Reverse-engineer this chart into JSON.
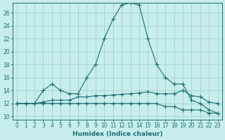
{
  "xlabel": "Humidex (Indice chaleur)",
  "bg_color": "#c8eded",
  "grid_color": "#a8d4d4",
  "line_color": "#1a7070",
  "xlim": [
    -0.5,
    23.5
  ],
  "ylim": [
    9.5,
    27.5
  ],
  "yticks": [
    10,
    12,
    14,
    16,
    18,
    20,
    22,
    24,
    26
  ],
  "xticks": [
    0,
    1,
    2,
    3,
    4,
    5,
    6,
    7,
    8,
    9,
    10,
    11,
    12,
    13,
    14,
    15,
    16,
    17,
    18,
    19,
    20,
    21,
    22,
    23
  ],
  "curve1_x": [
    0,
    1,
    2,
    3,
    4,
    5,
    6,
    7,
    8,
    9,
    10,
    11,
    12,
    13,
    14,
    15,
    16,
    17,
    18,
    19,
    20,
    21,
    22,
    23
  ],
  "curve1_y": [
    12,
    12,
    12,
    14,
    15,
    14,
    13.5,
    13.5,
    16,
    18,
    22,
    25,
    27.2,
    27.5,
    27.2,
    22,
    18,
    16,
    15,
    15,
    12.5,
    12,
    11,
    10.5
  ],
  "curve2_x": [
    0,
    1,
    2,
    3,
    4,
    5,
    6,
    7,
    8,
    9,
    10,
    11,
    12,
    13,
    14,
    15,
    16,
    17,
    18,
    19,
    20,
    21,
    22,
    23
  ],
  "curve2_y": [
    12,
    12,
    12,
    12.2,
    12.5,
    12.5,
    12.5,
    13,
    13,
    13.2,
    13.2,
    13.3,
    13.4,
    13.5,
    13.6,
    13.8,
    13.5,
    13.5,
    13.5,
    14,
    13.2,
    13,
    12.2,
    12
  ],
  "curve3_x": [
    0,
    1,
    2,
    3,
    4,
    5,
    6,
    7,
    8,
    9,
    10,
    11,
    12,
    13,
    14,
    15,
    16,
    17,
    18,
    19,
    20,
    21,
    22,
    23
  ],
  "curve3_y": [
    12,
    12,
    12,
    12,
    12,
    12,
    12,
    12,
    12,
    12,
    12,
    12,
    12,
    12,
    12,
    12,
    12,
    11.5,
    11.5,
    11,
    11,
    11,
    10.5,
    10.5
  ]
}
